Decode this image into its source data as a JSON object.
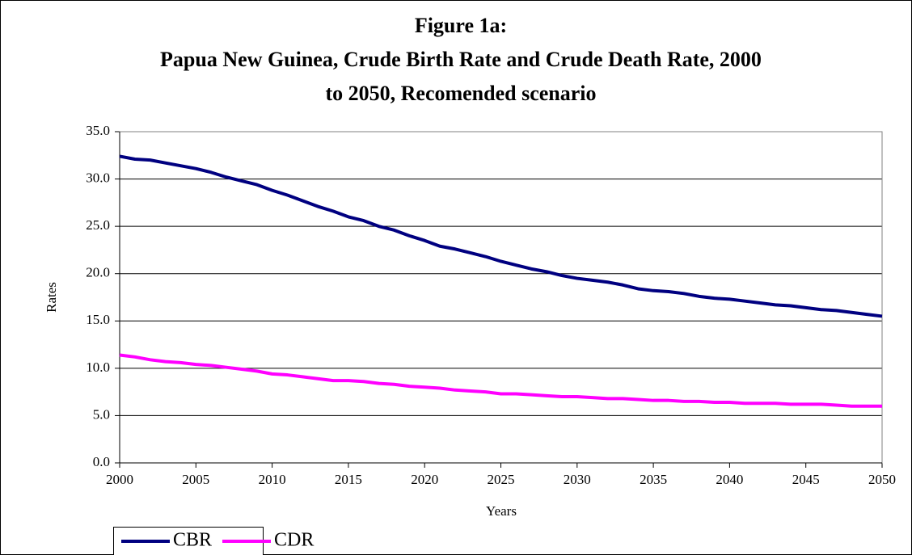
{
  "chart_data": {
    "type": "line",
    "title": [
      "Figure 1a:",
      "Papua New Guinea, Crude Birth Rate and Crude Death Rate, 2000",
      "to 2050, Recomended scenario"
    ],
    "x_label": "Years",
    "y_label": "Rates",
    "x": [
      2000,
      2001,
      2002,
      2003,
      2004,
      2005,
      2006,
      2007,
      2008,
      2009,
      2010,
      2011,
      2012,
      2013,
      2014,
      2015,
      2016,
      2017,
      2018,
      2019,
      2020,
      2021,
      2022,
      2023,
      2024,
      2025,
      2026,
      2027,
      2028,
      2029,
      2030,
      2031,
      2032,
      2033,
      2034,
      2035,
      2036,
      2037,
      2038,
      2039,
      2040,
      2041,
      2042,
      2043,
      2044,
      2045,
      2046,
      2047,
      2048,
      2049,
      2050
    ],
    "series": [
      {
        "name": "CBR",
        "color": "#000080",
        "values": [
          32.4,
          32.1,
          32.0,
          31.7,
          31.4,
          31.1,
          30.7,
          30.2,
          29.8,
          29.4,
          28.8,
          28.3,
          27.7,
          27.1,
          26.6,
          26.0,
          25.6,
          25.0,
          24.6,
          24.0,
          23.5,
          22.9,
          22.6,
          22.2,
          21.8,
          21.3,
          20.9,
          20.5,
          20.2,
          19.8,
          19.5,
          19.3,
          19.1,
          18.8,
          18.4,
          18.2,
          18.1,
          17.9,
          17.6,
          17.4,
          17.3,
          17.1,
          16.9,
          16.7,
          16.6,
          16.4,
          16.2,
          16.1,
          15.9,
          15.7,
          15.5
        ]
      },
      {
        "name": "CDR",
        "color": "#ff00ff",
        "values": [
          11.4,
          11.2,
          10.9,
          10.7,
          10.6,
          10.4,
          10.3,
          10.1,
          9.9,
          9.7,
          9.4,
          9.3,
          9.1,
          8.9,
          8.7,
          8.7,
          8.6,
          8.4,
          8.3,
          8.1,
          8.0,
          7.9,
          7.7,
          7.6,
          7.5,
          7.3,
          7.3,
          7.2,
          7.1,
          7.0,
          7.0,
          6.9,
          6.8,
          6.8,
          6.7,
          6.6,
          6.6,
          6.5,
          6.5,
          6.4,
          6.4,
          6.3,
          6.3,
          6.3,
          6.2,
          6.2,
          6.2,
          6.1,
          6.0,
          6.0,
          6.0
        ]
      }
    ],
    "xlim": [
      2000,
      2050
    ],
    "xticks": [
      2000,
      2005,
      2010,
      2015,
      2020,
      2025,
      2030,
      2035,
      2040,
      2045,
      2050
    ],
    "ylim": [
      0,
      35
    ],
    "yticks": [
      {
        "value": 0,
        "label": "0.0"
      },
      {
        "value": 5,
        "label": "5.0"
      },
      {
        "value": 10,
        "label": "10.0"
      },
      {
        "value": 15,
        "label": "15.0"
      },
      {
        "value": 20,
        "label": "20.0"
      },
      {
        "value": 25,
        "label": "25.0"
      },
      {
        "value": 30,
        "label": "30.0"
      },
      {
        "value": 35,
        "label": "35.0"
      }
    ],
    "grid": true,
    "legend": "bottom-left"
  }
}
